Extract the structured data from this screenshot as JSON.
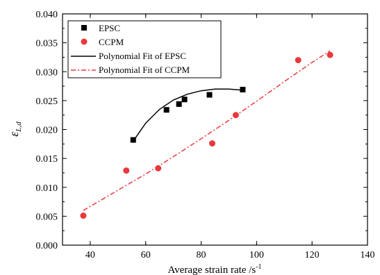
{
  "chart_data": {
    "type": "scatter",
    "xlabel": "Average strain rate /s",
    "xlabel_sup": "-1",
    "ylabel": "ε",
    "ylabel_sub": "L,d",
    "xlim": [
      30,
      140
    ],
    "ylim": [
      0,
      0.04
    ],
    "xticks": [
      "40",
      "60",
      "80",
      "100",
      "120",
      "140"
    ],
    "yticks": [
      "0.000",
      "0.005",
      "0.010",
      "0.015",
      "0.020",
      "0.025",
      "0.030",
      "0.035",
      "0.040"
    ],
    "grid": false,
    "legend_position": "top-left",
    "series": [
      {
        "name": "EPSC",
        "kind": "scatter",
        "marker": "square",
        "color": "#000000",
        "x": [
          55.5,
          67.5,
          72.0,
          74.0,
          83.0,
          95.0
        ],
        "y": [
          0.0182,
          0.0234,
          0.0244,
          0.0252,
          0.026,
          0.0269
        ]
      },
      {
        "name": "CCPM",
        "kind": "scatter",
        "marker": "circle",
        "color": "#e8393c",
        "x": [
          37.5,
          53.0,
          64.5,
          84.0,
          92.5,
          115.0,
          126.5
        ],
        "y": [
          0.0051,
          0.0129,
          0.0133,
          0.0176,
          0.0225,
          0.032,
          0.0329
        ]
      },
      {
        "name": "Polynomial Fit of EPSC",
        "kind": "line",
        "style": "solid",
        "color": "#000000",
        "x": [
          55.5,
          60,
          65,
          70,
          75,
          80,
          85,
          90,
          95
        ],
        "y": [
          0.018,
          0.0211,
          0.0235,
          0.0251,
          0.0261,
          0.0267,
          0.027,
          0.027,
          0.0268
        ]
      },
      {
        "name": "Polynomial Fit of CCPM",
        "kind": "line",
        "style": "dashdot",
        "color": "#e8393c",
        "x": [
          37.5,
          50,
          60,
          70,
          80,
          90,
          100,
          110,
          120,
          126.5
        ],
        "y": [
          0.006,
          0.0095,
          0.0123,
          0.0153,
          0.0184,
          0.0216,
          0.0249,
          0.0283,
          0.0316,
          0.0336
        ]
      }
    ]
  }
}
